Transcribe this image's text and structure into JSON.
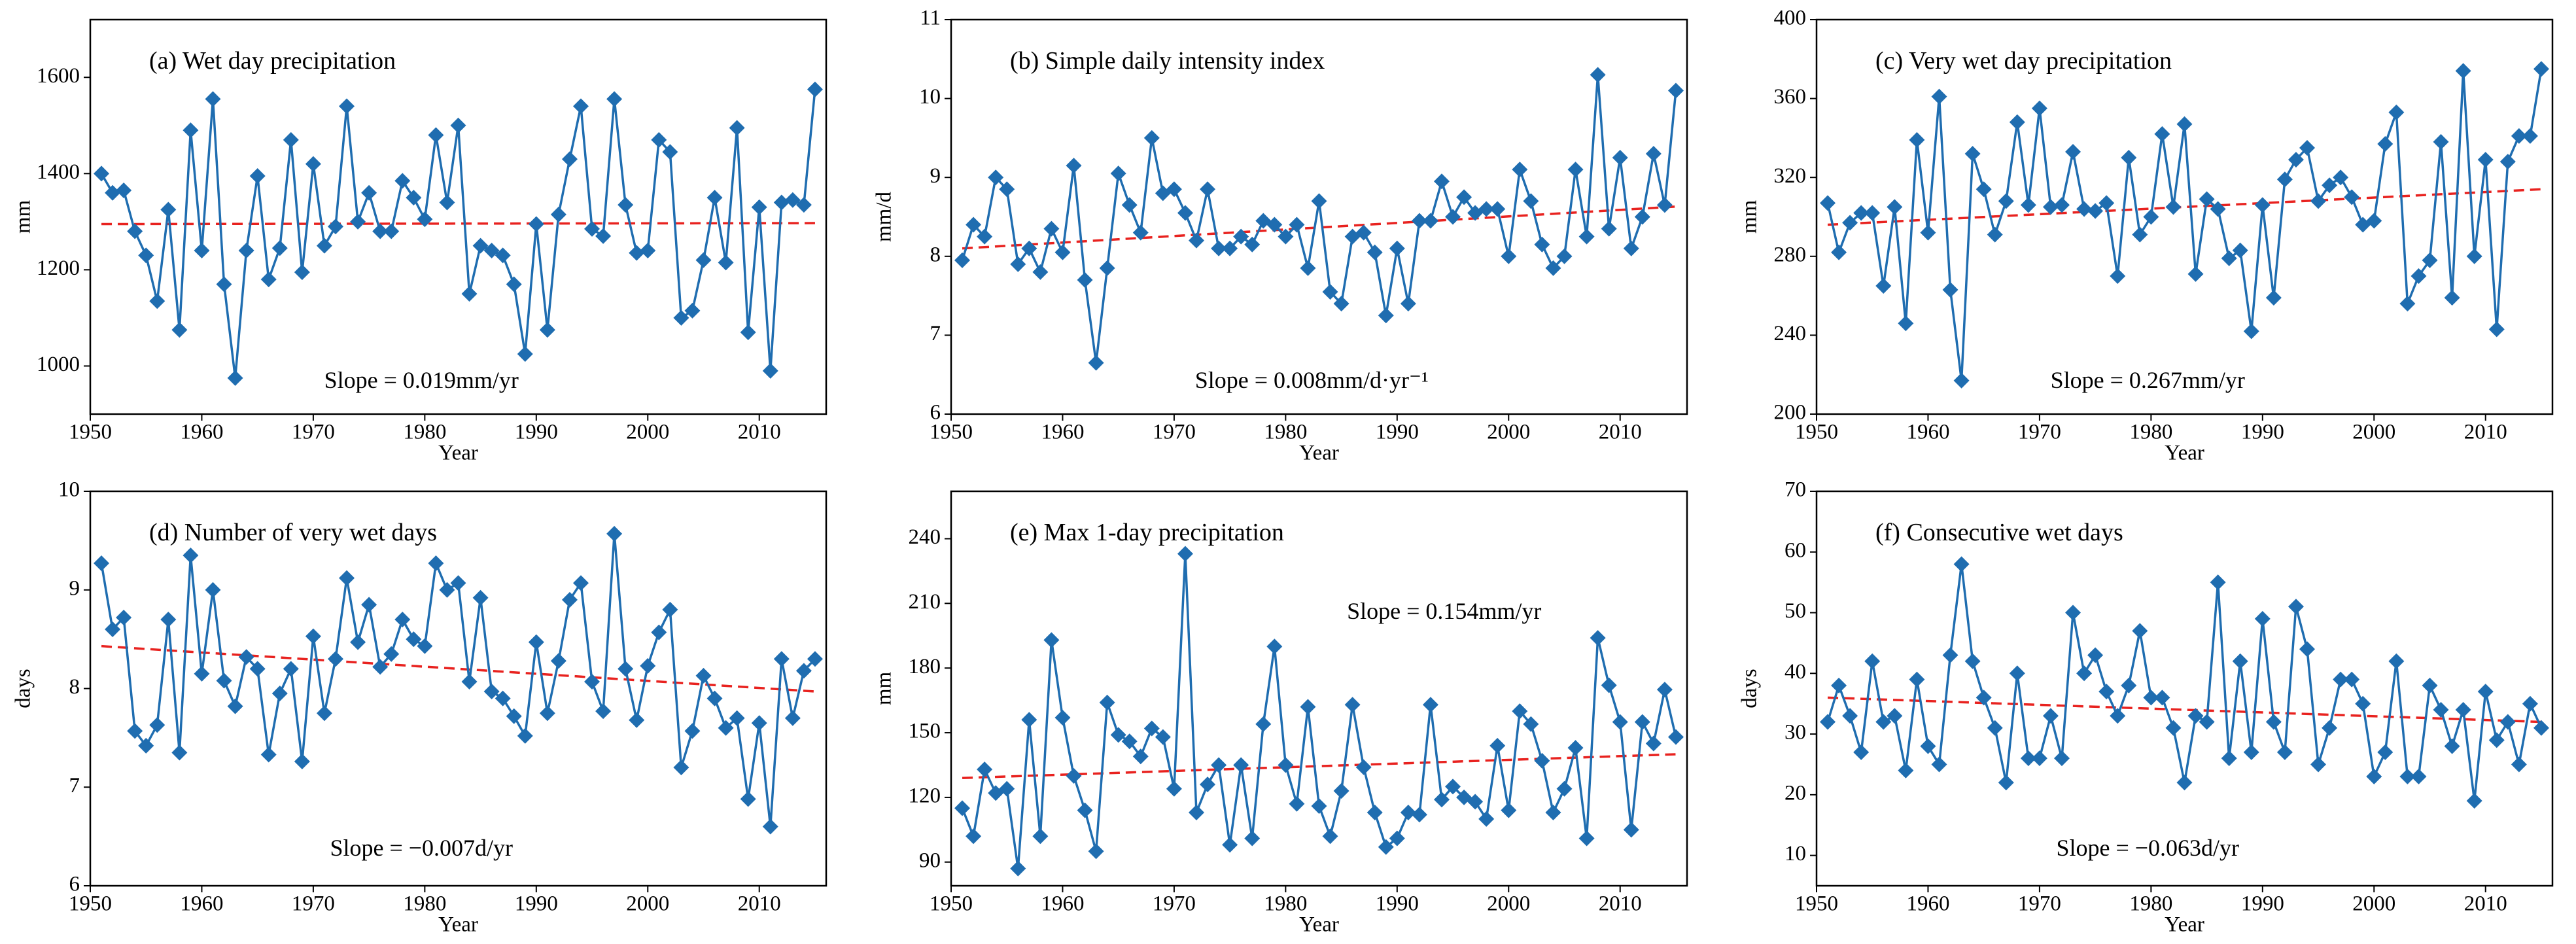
{
  "chart_data": [
    {
      "type": "line",
      "title": "(a) Wet day precipitation",
      "xlabel": "Year",
      "ylabel": "mm",
      "annotation": "Slope = 0.019mm/yr",
      "xlim": [
        1950,
        2016
      ],
      "xticks": [
        1950,
        1960,
        1970,
        1980,
        1990,
        2000,
        2010
      ],
      "ylim": [
        900,
        1720
      ],
      "yticks": [
        1000,
        1200,
        1400,
        1600
      ],
      "color": "#1f6db0",
      "x": [
        1951,
        1952,
        1953,
        1954,
        1955,
        1956,
        1957,
        1958,
        1959,
        1960,
        1961,
        1962,
        1963,
        1964,
        1965,
        1966,
        1967,
        1968,
        1969,
        1970,
        1971,
        1972,
        1973,
        1974,
        1975,
        1976,
        1977,
        1978,
        1979,
        1980,
        1981,
        1982,
        1983,
        1984,
        1985,
        1986,
        1987,
        1988,
        1989,
        1990,
        1991,
        1992,
        1993,
        1994,
        1995,
        1996,
        1997,
        1998,
        1999,
        2000,
        2001,
        2002,
        2003,
        2004,
        2005,
        2006,
        2007,
        2008,
        2009,
        2010,
        2011,
        2012,
        2013,
        2014,
        2015
      ],
      "values": [
        1400,
        1360,
        1365,
        1280,
        1230,
        1135,
        1325,
        1075,
        1490,
        1240,
        1555,
        1170,
        975,
        1240,
        1395,
        1180,
        1245,
        1470,
        1195,
        1420,
        1250,
        1290,
        1540,
        1300,
        1360,
        1280,
        1280,
        1385,
        1350,
        1305,
        1480,
        1340,
        1500,
        1150,
        1250,
        1240,
        1230,
        1170,
        1025,
        1295,
        1075,
        1315,
        1430,
        1540,
        1285,
        1270,
        1555,
        1335,
        1235,
        1240,
        1470,
        1445,
        1100,
        1115,
        1220,
        1350,
        1215,
        1495,
        1070,
        1330,
        990,
        1340,
        1345,
        1335,
        1575
      ],
      "trend": {
        "x": [
          1951,
          2015
        ],
        "values": [
          1295,
          1297
        ],
        "color": "#e8221f"
      }
    },
    {
      "type": "line",
      "title": "(b) Simple daily intensity index",
      "xlabel": "Year",
      "ylabel": "mm/d",
      "annotation": "Slope = 0.008mm/d·yr⁻¹",
      "xlim": [
        1950,
        2016
      ],
      "xticks": [
        1950,
        1960,
        1970,
        1980,
        1990,
        2000,
        2010
      ],
      "ylim": [
        6,
        11
      ],
      "yticks": [
        6,
        7,
        8,
        9,
        10,
        11
      ],
      "color": "#1f6db0",
      "x": [
        1951,
        1952,
        1953,
        1954,
        1955,
        1956,
        1957,
        1958,
        1959,
        1960,
        1961,
        1962,
        1963,
        1964,
        1965,
        1966,
        1967,
        1968,
        1969,
        1970,
        1971,
        1972,
        1973,
        1974,
        1975,
        1976,
        1977,
        1978,
        1979,
        1980,
        1981,
        1982,
        1983,
        1984,
        1985,
        1986,
        1987,
        1988,
        1989,
        1990,
        1991,
        1992,
        1993,
        1994,
        1995,
        1996,
        1997,
        1998,
        1999,
        2000,
        2001,
        2002,
        2003,
        2004,
        2005,
        2006,
        2007,
        2008,
        2009,
        2010,
        2011,
        2012,
        2013,
        2014,
        2015
      ],
      "values": [
        7.95,
        8.4,
        8.25,
        9.0,
        8.85,
        7.9,
        8.1,
        7.8,
        8.35,
        8.05,
        9.15,
        7.7,
        6.65,
        7.85,
        9.05,
        8.65,
        8.3,
        9.5,
        8.8,
        8.85,
        8.55,
        8.2,
        8.85,
        8.1,
        8.1,
        8.25,
        8.15,
        8.45,
        8.4,
        8.25,
        8.4,
        7.85,
        8.7,
        7.55,
        7.4,
        8.25,
        8.3,
        8.05,
        7.25,
        8.1,
        7.4,
        8.45,
        8.45,
        8.95,
        8.5,
        8.75,
        8.55,
        8.6,
        8.6,
        8.0,
        9.1,
        8.7,
        8.15,
        7.85,
        8.0,
        9.1,
        8.25,
        10.3,
        8.35,
        9.25,
        8.1,
        8.5,
        9.3,
        8.65,
        10.1
      ],
      "trend": {
        "x": [
          1951,
          2015
        ],
        "values": [
          8.1,
          8.63
        ],
        "color": "#e8221f"
      }
    },
    {
      "type": "line",
      "title": "(c) Very wet day precipitation",
      "xlabel": "Year",
      "ylabel": "mm",
      "annotation": "Slope = 0.267mm/yr",
      "xlim": [
        1950,
        2016
      ],
      "xticks": [
        1950,
        1960,
        1970,
        1980,
        1990,
        2000,
        2010
      ],
      "ylim": [
        200,
        400
      ],
      "yticks": [
        200,
        240,
        280,
        320,
        360,
        400
      ],
      "color": "#1f6db0",
      "x": [
        1951,
        1952,
        1953,
        1954,
        1955,
        1956,
        1957,
        1958,
        1959,
        1960,
        1961,
        1962,
        1963,
        1964,
        1965,
        1966,
        1967,
        1968,
        1969,
        1970,
        1971,
        1972,
        1973,
        1974,
        1975,
        1976,
        1977,
        1978,
        1979,
        1980,
        1981,
        1982,
        1983,
        1984,
        1985,
        1986,
        1987,
        1988,
        1989,
        1990,
        1991,
        1992,
        1993,
        1994,
        1995,
        1996,
        1997,
        1998,
        1999,
        2000,
        2001,
        2002,
        2003,
        2004,
        2005,
        2006,
        2007,
        2008,
        2009,
        2010,
        2011,
        2012,
        2013,
        2014,
        2015
      ],
      "values": [
        307,
        282,
        297,
        302,
        302,
        265,
        305,
        246,
        339,
        292,
        361,
        263,
        217,
        332,
        314,
        291,
        308,
        348,
        306,
        355,
        305,
        306,
        333,
        304,
        303,
        307,
        270,
        330,
        291,
        300,
        342,
        305,
        347,
        271,
        309,
        304,
        279,
        283,
        242,
        306,
        259,
        319,
        329,
        335,
        308,
        316,
        320,
        310,
        296,
        298,
        337,
        353,
        256,
        270,
        278,
        338,
        259,
        374,
        280,
        329,
        243,
        328,
        341,
        341,
        375
      ],
      "trend": {
        "x": [
          1951,
          2015
        ],
        "values": [
          296,
          314
        ],
        "color": "#e8221f"
      }
    },
    {
      "type": "line",
      "title": "(d) Number of very wet days",
      "xlabel": "Year",
      "ylabel": "days",
      "annotation": "Slope = −0.007d/yr",
      "xlim": [
        1950,
        2016
      ],
      "xticks": [
        1950,
        1960,
        1970,
        1980,
        1990,
        2000,
        2010
      ],
      "ylim": [
        6,
        10
      ],
      "yticks": [
        6,
        7,
        8,
        9,
        10
      ],
      "color": "#1f6db0",
      "x": [
        1951,
        1952,
        1953,
        1954,
        1955,
        1956,
        1957,
        1958,
        1959,
        1960,
        1961,
        1962,
        1963,
        1964,
        1965,
        1966,
        1967,
        1968,
        1969,
        1970,
        1971,
        1972,
        1973,
        1974,
        1975,
        1976,
        1977,
        1978,
        1979,
        1980,
        1981,
        1982,
        1983,
        1984,
        1985,
        1986,
        1987,
        1988,
        1989,
        1990,
        1991,
        1992,
        1993,
        1994,
        1995,
        1996,
        1997,
        1998,
        1999,
        2000,
        2001,
        2002,
        2003,
        2004,
        2005,
        2006,
        2007,
        2008,
        2009,
        2010,
        2011,
        2012,
        2013,
        2014,
        2015
      ],
      "values": [
        9.27,
        8.6,
        8.72,
        7.57,
        7.42,
        7.63,
        8.7,
        7.35,
        9.35,
        8.15,
        9.0,
        8.08,
        7.82,
        8.32,
        8.2,
        7.33,
        7.95,
        8.2,
        7.26,
        8.53,
        7.75,
        8.3,
        9.12,
        8.47,
        8.85,
        8.22,
        8.35,
        8.7,
        8.5,
        8.43,
        9.27,
        9.0,
        9.07,
        8.07,
        8.92,
        7.97,
        7.9,
        7.72,
        7.52,
        8.47,
        7.75,
        8.28,
        8.9,
        9.07,
        8.07,
        7.77,
        9.57,
        8.2,
        7.68,
        8.23,
        8.57,
        8.8,
        7.2,
        7.57,
        8.13,
        7.9,
        7.6,
        7.7,
        6.88,
        7.65,
        6.6,
        8.3,
        7.7,
        8.18,
        8.3
      ],
      "trend": {
        "x": [
          1951,
          2015
        ],
        "values": [
          8.43,
          7.97
        ],
        "color": "#e8221f"
      }
    },
    {
      "type": "line",
      "title": "(e) Max 1-day precipitation",
      "xlabel": "Year",
      "ylabel": "mm",
      "annotation": "Slope = 0.154mm/yr",
      "xlim": [
        1950,
        2016
      ],
      "xticks": [
        1950,
        1960,
        1970,
        1980,
        1990,
        2000,
        2010
      ],
      "ylim": [
        79,
        262
      ],
      "yticks": [
        90,
        120,
        150,
        180,
        210,
        240
      ],
      "color": "#1f6db0",
      "x": [
        1951,
        1952,
        1953,
        1954,
        1955,
        1956,
        1957,
        1958,
        1959,
        1960,
        1961,
        1962,
        1963,
        1964,
        1965,
        1966,
        1967,
        1968,
        1969,
        1970,
        1971,
        1972,
        1973,
        1974,
        1975,
        1976,
        1977,
        1978,
        1979,
        1980,
        1981,
        1982,
        1983,
        1984,
        1985,
        1986,
        1987,
        1988,
        1989,
        1990,
        1991,
        1992,
        1993,
        1994,
        1995,
        1996,
        1997,
        1998,
        1999,
        2000,
        2001,
        2002,
        2003,
        2004,
        2005,
        2006,
        2007,
        2008,
        2009,
        2010,
        2011,
        2012,
        2013,
        2014,
        2015
      ],
      "values": [
        115,
        102,
        133,
        122,
        124,
        87,
        156,
        102,
        193,
        157,
        130,
        114,
        95,
        164,
        149,
        146,
        139,
        152,
        148,
        124,
        233,
        113,
        126,
        135,
        98,
        135,
        101,
        154,
        190,
        135,
        117,
        162,
        116,
        102,
        123,
        163,
        134,
        113,
        97,
        101,
        113,
        112,
        163,
        119,
        125,
        120,
        118,
        110,
        144,
        114,
        160,
        154,
        137,
        113,
        124,
        143,
        101,
        194,
        172,
        155,
        105,
        155,
        145,
        170,
        148
      ],
      "trend": {
        "x": [
          1951,
          2015
        ],
        "values": [
          129,
          140
        ],
        "color": "#e8221f"
      }
    },
    {
      "type": "line",
      "title": "(f) Consecutive wet days",
      "xlabel": "Year",
      "ylabel": "days",
      "annotation": "Slope = −0.063d/yr",
      "xlim": [
        1950,
        2016
      ],
      "xticks": [
        1950,
        1960,
        1970,
        1980,
        1990,
        2000,
        2010
      ],
      "ylim": [
        5,
        70
      ],
      "yticks": [
        10,
        20,
        30,
        40,
        50,
        60,
        70
      ],
      "color": "#1f6db0",
      "x": [
        1951,
        1952,
        1953,
        1954,
        1955,
        1956,
        1957,
        1958,
        1959,
        1960,
        1961,
        1962,
        1963,
        1964,
        1965,
        1966,
        1967,
        1968,
        1969,
        1970,
        1971,
        1972,
        1973,
        1974,
        1975,
        1976,
        1977,
        1978,
        1979,
        1980,
        1981,
        1982,
        1983,
        1984,
        1985,
        1986,
        1987,
        1988,
        1989,
        1990,
        1991,
        1992,
        1993,
        1994,
        1995,
        1996,
        1997,
        1998,
        1999,
        2000,
        2001,
        2002,
        2003,
        2004,
        2005,
        2006,
        2007,
        2008,
        2009,
        2010,
        2011,
        2012,
        2013,
        2014,
        2015
      ],
      "values": [
        32,
        38,
        33,
        27,
        42,
        32,
        33,
        24,
        39,
        28,
        25,
        43,
        58,
        42,
        36,
        31,
        22,
        40,
        26,
        26,
        33,
        26,
        50,
        40,
        43,
        37,
        33,
        38,
        47,
        36,
        36,
        31,
        22,
        33,
        32,
        55,
        26,
        42,
        27,
        49,
        32,
        27,
        51,
        44,
        25,
        31,
        39,
        39,
        35,
        23,
        27,
        42,
        23,
        23,
        38,
        34,
        28,
        34,
        19,
        37,
        29,
        32,
        25,
        35,
        31
      ],
      "trend": {
        "x": [
          1951,
          2015
        ],
        "values": [
          36,
          32
        ],
        "color": "#e8221f"
      }
    }
  ]
}
